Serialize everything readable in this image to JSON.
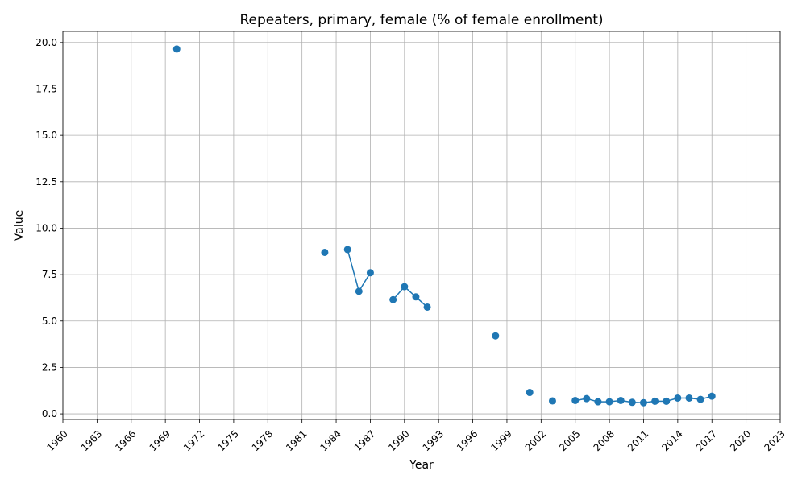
{
  "chart_data": {
    "type": "line",
    "title": "Repeaters, primary, female (% of female enrollment)",
    "xlabel": "Year",
    "ylabel": "Value",
    "xlim": [
      1960,
      2023
    ],
    "ylim": [
      -0.3,
      20.6
    ],
    "grid": true,
    "color": "#1f77b4",
    "x_ticks": [
      "1960",
      "1963",
      "1966",
      "1969",
      "1972",
      "1975",
      "1978",
      "1981",
      "1984",
      "1987",
      "1990",
      "1993",
      "1996",
      "1999",
      "2002",
      "2005",
      "2008",
      "2011",
      "2014",
      "2017",
      "2020",
      "2023"
    ],
    "y_ticks": [
      "0.0",
      "2.5",
      "5.0",
      "7.5",
      "10.0",
      "12.5",
      "15.0",
      "17.5",
      "20.0"
    ],
    "points": [
      {
        "x": 1970,
        "y": 19.65
      },
      {
        "x": 1983,
        "y": 8.7
      },
      {
        "x": 1985,
        "y": 8.85
      },
      {
        "x": 1986,
        "y": 6.6
      },
      {
        "x": 1987,
        "y": 7.6
      },
      {
        "x": 1989,
        "y": 6.15
      },
      {
        "x": 1990,
        "y": 6.85
      },
      {
        "x": 1991,
        "y": 6.3
      },
      {
        "x": 1992,
        "y": 5.75
      },
      {
        "x": 1998,
        "y": 4.2
      },
      {
        "x": 2001,
        "y": 1.15
      },
      {
        "x": 2003,
        "y": 0.7
      },
      {
        "x": 2005,
        "y": 0.72
      },
      {
        "x": 2006,
        "y": 0.82
      },
      {
        "x": 2007,
        "y": 0.65
      },
      {
        "x": 2008,
        "y": 0.65
      },
      {
        "x": 2009,
        "y": 0.72
      },
      {
        "x": 2010,
        "y": 0.62
      },
      {
        "x": 2011,
        "y": 0.6
      },
      {
        "x": 2012,
        "y": 0.68
      },
      {
        "x": 2013,
        "y": 0.68
      },
      {
        "x": 2014,
        "y": 0.85
      },
      {
        "x": 2015,
        "y": 0.85
      },
      {
        "x": 2016,
        "y": 0.78
      },
      {
        "x": 2017,
        "y": 0.95
      }
    ]
  }
}
